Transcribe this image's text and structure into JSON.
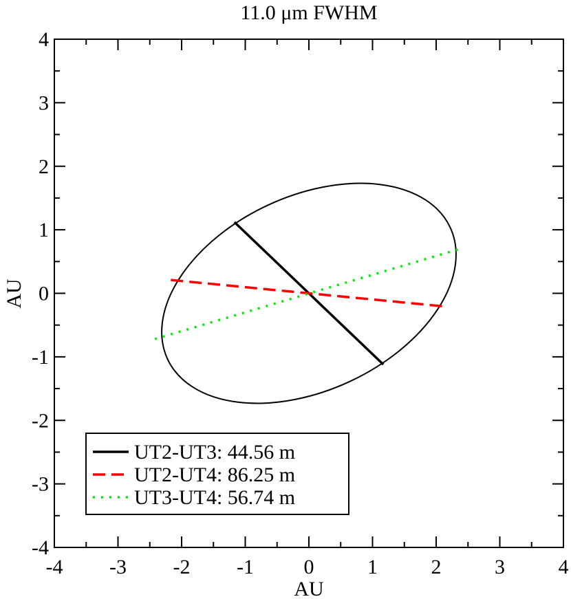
{
  "chart_data": {
    "type": "line",
    "title": "11.0 μm FWHM",
    "xlabel": "AU",
    "ylabel": "AU",
    "xlim": [
      -4,
      4
    ],
    "ylim": [
      -4,
      4
    ],
    "x_ticks": [
      -4,
      -3,
      -2,
      -1,
      0,
      1,
      2,
      3,
      4
    ],
    "y_ticks": [
      -4,
      -3,
      -2,
      -1,
      0,
      1,
      2,
      3,
      4
    ],
    "x_tick_labels": [
      "-4",
      "-3",
      "-2",
      "-1",
      "0",
      "1",
      "2",
      "3",
      "4"
    ],
    "y_tick_labels": [
      "-4",
      "-3",
      "-2",
      "-1",
      "0",
      "1",
      "2",
      "3",
      "4"
    ],
    "grid": false,
    "legend_position": "bottom-left",
    "ellipse": {
      "center": [
        0,
        0
      ],
      "semi_major": 2.45,
      "semi_minor": 1.53,
      "angle_deg": 25,
      "color": "#000000"
    },
    "series": [
      {
        "name": "UT2-UT3: 44.56 m",
        "style": "solid",
        "color": "#000000",
        "x": [
          -1.17,
          1.17
        ],
        "y": [
          1.12,
          -1.12
        ]
      },
      {
        "name": "UT2-UT4: 86.25 m",
        "style": "dashed",
        "color": "#ff0000",
        "x": [
          -2.17,
          2.17
        ],
        "y": [
          0.21,
          -0.21
        ]
      },
      {
        "name": "UT3-UT4: 56.74 m",
        "style": "dotted",
        "color": "#00ee00",
        "x": [
          -2.42,
          2.38
        ],
        "y": [
          -0.72,
          0.7
        ]
      }
    ]
  }
}
